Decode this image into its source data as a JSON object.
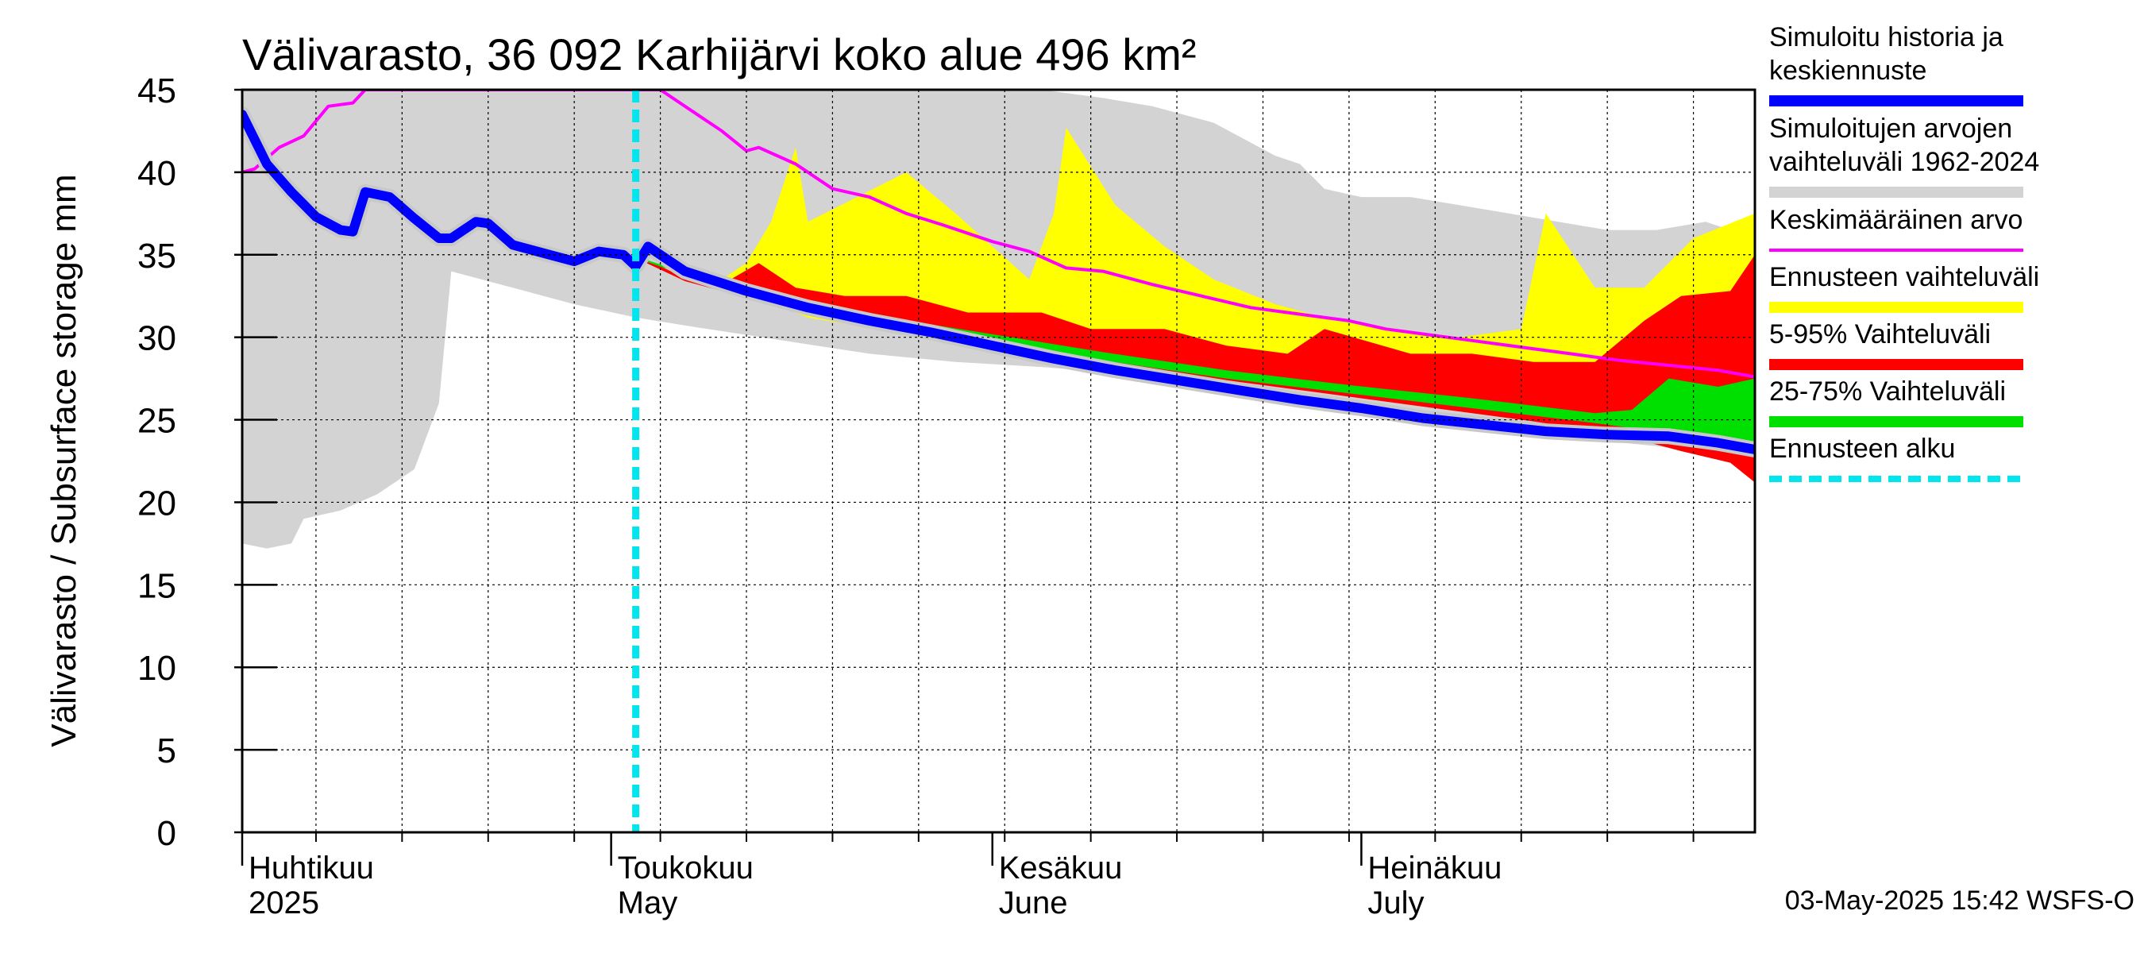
{
  "chart_data": {
    "type": "area",
    "title": "Välivarasto, 36 092 Karhijärvi koko alue 496 km²",
    "ylabel": "Välivarasto / Subsurface storage  mm",
    "ylim": [
      0,
      45
    ],
    "yticks": [
      0,
      5,
      10,
      15,
      20,
      25,
      30,
      35,
      40,
      45
    ],
    "ytick_labels": [
      "0",
      "5",
      "10",
      "15",
      "20",
      "25",
      "30",
      "35",
      "40",
      "45"
    ],
    "xlim": [
      "2025-04-01",
      "2025-08-02"
    ],
    "grid": true,
    "legend_position": "right",
    "month_labels": [
      {
        "fi": "Huhtikuu",
        "en": "2025",
        "date": "2025-04-01"
      },
      {
        "fi": "Toukokuu",
        "en": "May",
        "date": "2025-05-01"
      },
      {
        "fi": "Kesäkuu",
        "en": "June",
        "date": "2025-06-01"
      },
      {
        "fi": "Heinäkuu",
        "en": "July",
        "date": "2025-07-01"
      }
    ],
    "forecast_start": "2025-05-03",
    "series": [
      {
        "name": "Simuloitujen arvojen vaihteluväli 1962-2024",
        "kind": "band",
        "color": "#d3d3d3",
        "points": [
          [
            "2025-04-01",
            17.5,
            45
          ],
          [
            "2025-04-03",
            17.2,
            45
          ],
          [
            "2025-04-05",
            17.5,
            45
          ],
          [
            "2025-04-06",
            19.0,
            45
          ],
          [
            "2025-04-09",
            19.5,
            45
          ],
          [
            "2025-04-12",
            20.5,
            45
          ],
          [
            "2025-04-15",
            22.0,
            45
          ],
          [
            "2025-04-17",
            26.0,
            45
          ],
          [
            "2025-04-18",
            34.0,
            45
          ],
          [
            "2025-04-23",
            33.0,
            45
          ],
          [
            "2025-04-28",
            32.0,
            45
          ],
          [
            "2025-05-03",
            31.2,
            45
          ],
          [
            "2025-05-08",
            30.6,
            45
          ],
          [
            "2025-05-15",
            29.8,
            45
          ],
          [
            "2025-05-22",
            29.0,
            45
          ],
          [
            "2025-05-29",
            28.5,
            45
          ],
          [
            "2025-06-05",
            28.2,
            45
          ],
          [
            "2025-06-10",
            27.9,
            44.5
          ],
          [
            "2025-06-14",
            27.5,
            44.0
          ],
          [
            "2025-06-19",
            27.0,
            43.0
          ],
          [
            "2025-06-24",
            26.5,
            41.0
          ],
          [
            "2025-06-26",
            26.3,
            40.5
          ],
          [
            "2025-06-28",
            26.0,
            39.0
          ],
          [
            "2025-07-01",
            25.6,
            38.5
          ],
          [
            "2025-07-05",
            25.2,
            38.5
          ],
          [
            "2025-07-09",
            24.8,
            38.0
          ],
          [
            "2025-07-13",
            24.4,
            37.5
          ],
          [
            "2025-07-17",
            24.0,
            37.0
          ],
          [
            "2025-07-21",
            23.7,
            36.5
          ],
          [
            "2025-07-25",
            23.4,
            36.5
          ],
          [
            "2025-07-29",
            23.0,
            37.0
          ],
          [
            "2025-08-02",
            22.7,
            36.0
          ]
        ]
      },
      {
        "name": "Ennusteen vaihteluväli",
        "kind": "band",
        "color": "#ffff00",
        "points": [
          [
            "2025-05-03",
            34.8,
            35.0
          ],
          [
            "2025-05-07",
            33.6,
            33.6
          ],
          [
            "2025-05-10",
            33.0,
            33.5
          ],
          [
            "2025-05-12",
            32.5,
            34.5
          ],
          [
            "2025-05-14",
            32.0,
            37.0
          ],
          [
            "2025-05-16",
            31.5,
            41.5
          ],
          [
            "2025-05-17",
            31.2,
            37.0
          ],
          [
            "2025-05-21",
            30.7,
            38.5
          ],
          [
            "2025-05-25",
            30.2,
            40.0
          ],
          [
            "2025-05-29",
            29.8,
            37.5
          ],
          [
            "2025-06-01",
            29.5,
            35.5
          ],
          [
            "2025-06-04",
            29.1,
            33.5
          ],
          [
            "2025-06-06",
            28.9,
            37.5
          ],
          [
            "2025-06-07",
            28.8,
            42.7
          ],
          [
            "2025-06-11",
            28.4,
            38.0
          ],
          [
            "2025-06-15",
            28.0,
            35.5
          ],
          [
            "2025-06-19",
            27.6,
            33.5
          ],
          [
            "2025-06-24",
            27.1,
            32.0
          ],
          [
            "2025-06-29",
            26.6,
            31.0
          ],
          [
            "2025-07-04",
            26.1,
            30.5
          ],
          [
            "2025-07-09",
            25.6,
            30.0
          ],
          [
            "2025-07-14",
            25.1,
            30.5
          ],
          [
            "2025-07-16",
            24.9,
            37.5
          ],
          [
            "2025-07-20",
            24.5,
            33.0
          ],
          [
            "2025-07-24",
            24.1,
            33.0
          ],
          [
            "2025-07-28",
            23.6,
            36.0
          ],
          [
            "2025-08-02",
            23.0,
            37.5
          ]
        ]
      },
      {
        "name": "5-95% Vaihteluväli",
        "kind": "band",
        "color": "#ff0000",
        "points": [
          [
            "2025-05-03",
            34.8,
            35.0
          ],
          [
            "2025-05-07",
            33.4,
            33.6
          ],
          [
            "2025-05-10",
            32.8,
            33.2
          ],
          [
            "2025-05-13",
            32.3,
            34.5
          ],
          [
            "2025-05-16",
            31.7,
            33.0
          ],
          [
            "2025-05-20",
            31.1,
            32.5
          ],
          [
            "2025-05-25",
            30.5,
            32.5
          ],
          [
            "2025-05-30",
            29.8,
            31.5
          ],
          [
            "2025-06-05",
            29.1,
            31.5
          ],
          [
            "2025-06-09",
            28.7,
            30.5
          ],
          [
            "2025-06-15",
            28.0,
            30.5
          ],
          [
            "2025-06-20",
            27.4,
            29.5
          ],
          [
            "2025-06-25",
            26.9,
            29.0
          ],
          [
            "2025-06-28",
            26.6,
            30.5
          ],
          [
            "2025-07-05",
            25.9,
            29.0
          ],
          [
            "2025-07-10",
            25.4,
            29.0
          ],
          [
            "2025-07-15",
            24.9,
            28.5
          ],
          [
            "2025-07-20",
            24.3,
            28.5
          ],
          [
            "2025-07-24",
            23.7,
            31.0
          ],
          [
            "2025-07-27",
            23.1,
            32.5
          ],
          [
            "2025-07-31",
            22.4,
            32.8
          ],
          [
            "2025-08-02",
            21.2,
            35.0
          ]
        ]
      },
      {
        "name": "25-75% Vaihteluväli",
        "kind": "band",
        "color": "#00e000",
        "points": [
          [
            "2025-05-03",
            34.8,
            34.9
          ],
          [
            "2025-05-10",
            33.0,
            33.2
          ],
          [
            "2025-05-20",
            31.3,
            31.6
          ],
          [
            "2025-05-31",
            29.8,
            30.3
          ],
          [
            "2025-06-10",
            28.6,
            29.1
          ],
          [
            "2025-06-20",
            27.5,
            28.0
          ],
          [
            "2025-06-30",
            26.6,
            27.1
          ],
          [
            "2025-07-10",
            25.7,
            26.3
          ],
          [
            "2025-07-20",
            24.8,
            25.4
          ],
          [
            "2025-07-23",
            24.5,
            25.6
          ],
          [
            "2025-07-26",
            24.1,
            27.5
          ],
          [
            "2025-07-30",
            23.7,
            27.0
          ],
          [
            "2025-08-02",
            22.9,
            27.5
          ]
        ]
      },
      {
        "name": "Keskimääräinen arvo",
        "kind": "line",
        "color": "#ff00ff",
        "points": [
          [
            "2025-04-01",
            40.0
          ],
          [
            "2025-04-02",
            40.2
          ],
          [
            "2025-04-04",
            41.5
          ],
          [
            "2025-04-06",
            42.2
          ],
          [
            "2025-04-08",
            44.0
          ],
          [
            "2025-04-10",
            44.2
          ],
          [
            "2025-04-11",
            45.0
          ],
          [
            "2025-05-05",
            45.0
          ],
          [
            "2025-05-07",
            44.0
          ],
          [
            "2025-05-10",
            42.5
          ],
          [
            "2025-05-12",
            41.3
          ],
          [
            "2025-05-13",
            41.5
          ],
          [
            "2025-05-16",
            40.5
          ],
          [
            "2025-05-19",
            39.0
          ],
          [
            "2025-05-22",
            38.5
          ],
          [
            "2025-05-25",
            37.5
          ],
          [
            "2025-05-28",
            36.8
          ],
          [
            "2025-06-01",
            35.8
          ],
          [
            "2025-06-04",
            35.2
          ],
          [
            "2025-06-07",
            34.2
          ],
          [
            "2025-06-10",
            34.0
          ],
          [
            "2025-06-14",
            33.2
          ],
          [
            "2025-06-18",
            32.5
          ],
          [
            "2025-06-22",
            31.8
          ],
          [
            "2025-06-26",
            31.4
          ],
          [
            "2025-06-30",
            31.0
          ],
          [
            "2025-07-03",
            30.5
          ],
          [
            "2025-07-06",
            30.2
          ],
          [
            "2025-07-10",
            29.8
          ],
          [
            "2025-07-14",
            29.4
          ],
          [
            "2025-07-18",
            29.0
          ],
          [
            "2025-07-22",
            28.6
          ],
          [
            "2025-07-26",
            28.3
          ],
          [
            "2025-07-30",
            28.0
          ],
          [
            "2025-08-02",
            27.6
          ]
        ]
      },
      {
        "name": "Simuloitu historia ja keskiennuste",
        "kind": "line",
        "color": "#0000ff",
        "points": [
          [
            "2025-04-01",
            43.5
          ],
          [
            "2025-04-03",
            40.5
          ],
          [
            "2025-04-05",
            38.8
          ],
          [
            "2025-04-07",
            37.3
          ],
          [
            "2025-04-09",
            36.5
          ],
          [
            "2025-04-10",
            36.4
          ],
          [
            "2025-04-11",
            38.8
          ],
          [
            "2025-04-13",
            38.5
          ],
          [
            "2025-04-15",
            37.2
          ],
          [
            "2025-04-17",
            36.0
          ],
          [
            "2025-04-18",
            36.0
          ],
          [
            "2025-04-20",
            37.0
          ],
          [
            "2025-04-21",
            36.9
          ],
          [
            "2025-04-23",
            35.6
          ],
          [
            "2025-04-26",
            35.0
          ],
          [
            "2025-04-28",
            34.6
          ],
          [
            "2025-04-30",
            35.2
          ],
          [
            "2025-05-02",
            35.0
          ],
          [
            "2025-05-03",
            34.3
          ],
          [
            "2025-05-04",
            35.5
          ],
          [
            "2025-05-07",
            34.0
          ],
          [
            "2025-05-12",
            32.8
          ],
          [
            "2025-05-17",
            31.8
          ],
          [
            "2025-05-22",
            31.0
          ],
          [
            "2025-05-27",
            30.3
          ],
          [
            "2025-06-01",
            29.5
          ],
          [
            "2025-06-06",
            28.7
          ],
          [
            "2025-06-11",
            28.0
          ],
          [
            "2025-06-16",
            27.4
          ],
          [
            "2025-06-21",
            26.8
          ],
          [
            "2025-06-26",
            26.2
          ],
          [
            "2025-07-01",
            25.7
          ],
          [
            "2025-07-06",
            25.1
          ],
          [
            "2025-07-11",
            24.7
          ],
          [
            "2025-07-16",
            24.3
          ],
          [
            "2025-07-21",
            24.1
          ],
          [
            "2025-07-26",
            24.0
          ],
          [
            "2025-07-30",
            23.6
          ],
          [
            "2025-08-02",
            23.2
          ]
        ]
      }
    ],
    "legend": [
      {
        "label_lines": [
          "Simuloitu historia ja",
          "keskiennuste"
        ],
        "color": "#0000ff",
        "style": "thick"
      },
      {
        "label_lines": [
          "Simuloitujen arvojen",
          "vaihteluväli 1962-2024"
        ],
        "color": "#d3d3d3",
        "style": "thick"
      },
      {
        "label_lines": [
          "Keskimääräinen arvo"
        ],
        "color": "#ff00ff",
        "style": "thin"
      },
      {
        "label_lines": [
          "Ennusteen vaihteluväli"
        ],
        "color": "#ffff00",
        "style": "thick"
      },
      {
        "label_lines": [
          "5-95% Vaihteluväli"
        ],
        "color": "#ff0000",
        "style": "thick"
      },
      {
        "label_lines": [
          "25-75% Vaihteluväli"
        ],
        "color": "#00e000",
        "style": "thick"
      },
      {
        "label_lines": [
          "Ennusteen alku"
        ],
        "color": "#00e5ee",
        "style": "dashed"
      }
    ],
    "footer": "03-May-2025 15:42 WSFS-O"
  }
}
